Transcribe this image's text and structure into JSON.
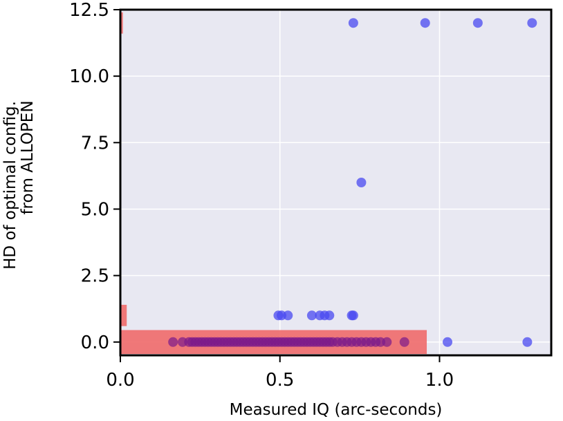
{
  "chart_data": {
    "type": "scatter",
    "xlabel": "Measured IQ (arc-seconds)",
    "ylabel_lines": [
      "HD of optimal config.",
      "from ALLOPEN"
    ],
    "xlim": [
      0.0,
      1.35
    ],
    "ylim": [
      -0.5,
      12.5
    ],
    "xticks": [
      0.0,
      0.5,
      1.0
    ],
    "xtick_labels": [
      "0.0",
      "0.5",
      "1.0"
    ],
    "yticks": [
      0.0,
      2.5,
      5.0,
      7.5,
      10.0,
      12.5
    ],
    "ytick_labels": [
      "0.0",
      "2.5",
      "5.0",
      "7.5",
      "10.0",
      "12.5"
    ],
    "grid": true,
    "background_color": "#e8e8f2",
    "colors": {
      "blue_points": "#4a4af0",
      "purple_points": "#7a1a8a",
      "red_bars": "#f06a6a"
    },
    "horizontal_bars": [
      {
        "y": 0.0,
        "height": 0.9,
        "value": 0.96
      },
      {
        "y": 1.0,
        "height": 0.8,
        "value": 0.02
      },
      {
        "y": 12.0,
        "height": 0.8,
        "value": 0.008
      }
    ],
    "blue_points": [
      {
        "x": 0.73,
        "y": 12
      },
      {
        "x": 0.955,
        "y": 12
      },
      {
        "x": 1.12,
        "y": 12
      },
      {
        "x": 1.29,
        "y": 12
      },
      {
        "x": 0.755,
        "y": 6
      },
      {
        "x": 0.495,
        "y": 1
      },
      {
        "x": 0.505,
        "y": 1
      },
      {
        "x": 0.525,
        "y": 1
      },
      {
        "x": 0.6,
        "y": 1
      },
      {
        "x": 0.625,
        "y": 1
      },
      {
        "x": 0.64,
        "y": 1
      },
      {
        "x": 0.655,
        "y": 1
      },
      {
        "x": 0.725,
        "y": 1
      },
      {
        "x": 0.73,
        "y": 1
      },
      {
        "x": 1.025,
        "y": 0
      },
      {
        "x": 1.275,
        "y": 0
      }
    ],
    "purple_points_y": 0,
    "purple_points_x": [
      0.165,
      0.195,
      0.215,
      0.225,
      0.235,
      0.245,
      0.255,
      0.265,
      0.275,
      0.285,
      0.295,
      0.305,
      0.315,
      0.325,
      0.335,
      0.345,
      0.355,
      0.365,
      0.375,
      0.385,
      0.395,
      0.405,
      0.415,
      0.425,
      0.435,
      0.445,
      0.455,
      0.465,
      0.475,
      0.485,
      0.495,
      0.505,
      0.515,
      0.525,
      0.535,
      0.545,
      0.555,
      0.565,
      0.575,
      0.585,
      0.595,
      0.605,
      0.615,
      0.625,
      0.635,
      0.645,
      0.655,
      0.665,
      0.68,
      0.695,
      0.71,
      0.725,
      0.74,
      0.755,
      0.77,
      0.785,
      0.8,
      0.815,
      0.835,
      0.89
    ]
  }
}
